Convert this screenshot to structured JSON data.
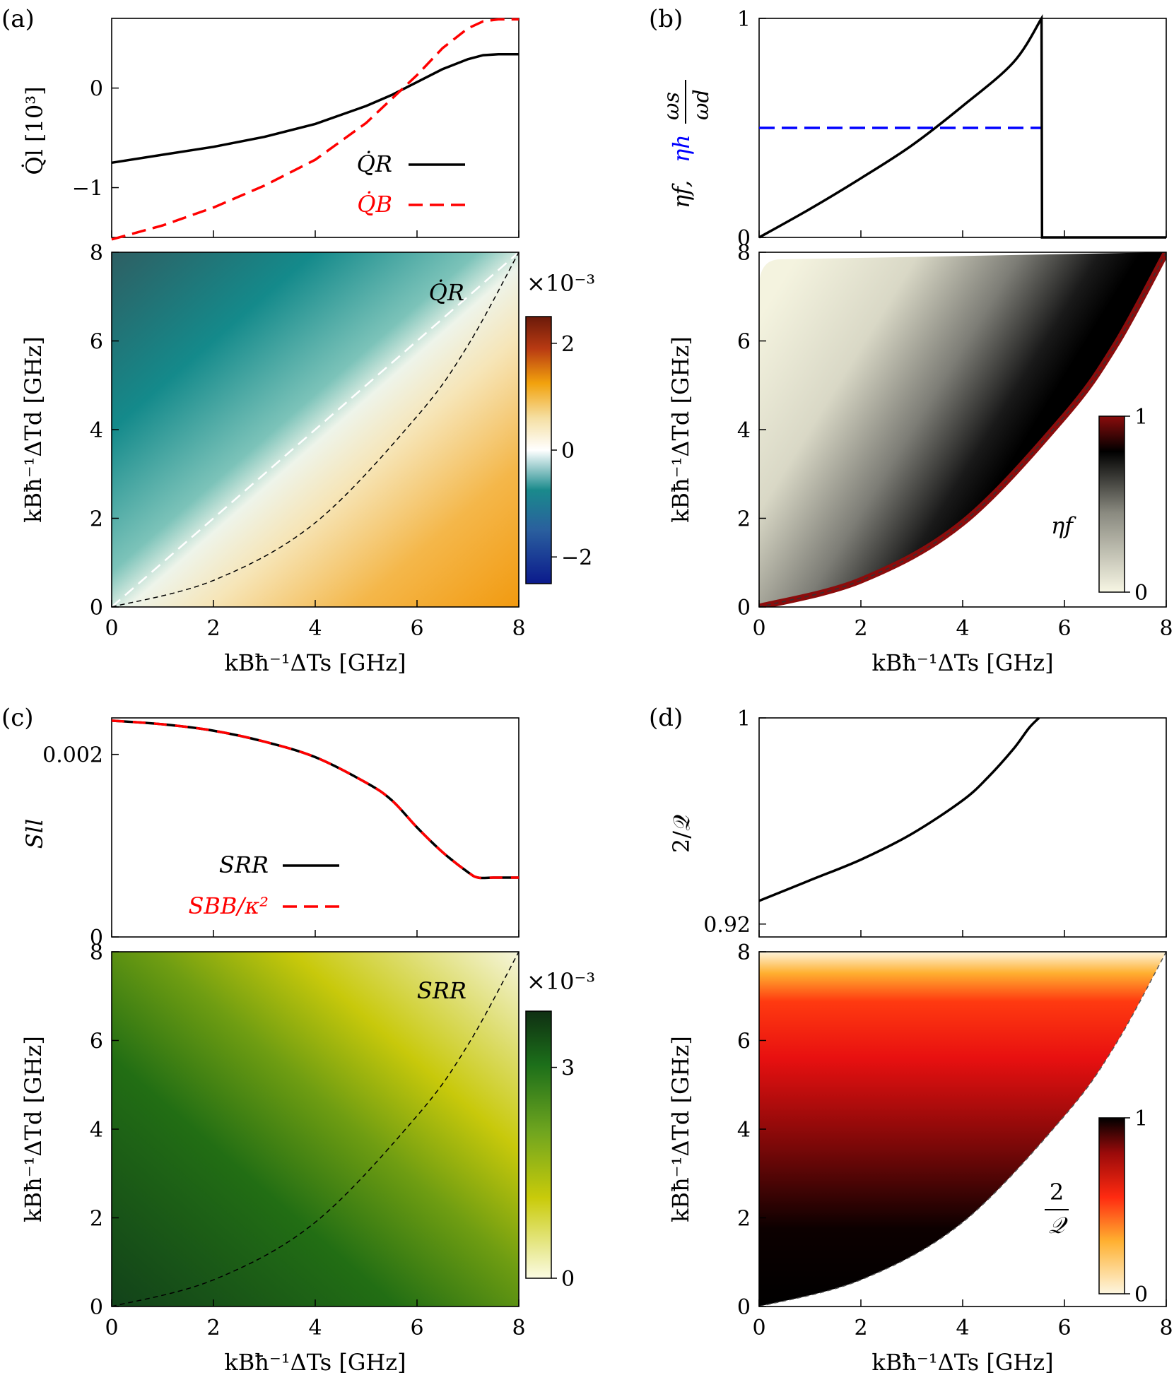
{
  "figure": {
    "panel_labels": [
      "(a)",
      "(b)",
      "(c)",
      "(d)"
    ],
    "xlabel": "kBħ⁻¹ΔTs [GHz]",
    "ylabel": "kBħ⁻¹ΔTd [GHz]"
  },
  "chart_data": [
    {
      "panel": "(a) top",
      "type": "line",
      "ylabel": "Q̇l [10³]",
      "xlim": [
        0,
        8
      ],
      "ylim": [
        -1.5,
        0.7
      ],
      "yticks": [
        -1,
        0
      ],
      "ytick_labels": [
        "−1",
        "0"
      ],
      "legend_position": "center-right",
      "x": [
        0,
        1,
        2,
        3,
        4,
        5,
        5.5,
        6,
        6.5,
        7,
        7.3,
        7.6,
        8
      ],
      "series": [
        {
          "name": "Q̇R",
          "color": "#000000",
          "style": "solid",
          "values": [
            -0.75,
            -0.67,
            -0.59,
            -0.49,
            -0.36,
            -0.18,
            -0.07,
            0.06,
            0.19,
            0.29,
            0.33,
            0.34,
            0.34
          ]
        },
        {
          "name": "Q̇B",
          "color": "#ff0000",
          "style": "dashed",
          "values": [
            -1.52,
            -1.38,
            -1.2,
            -0.98,
            -0.72,
            -0.35,
            -0.11,
            0.13,
            0.4,
            0.6,
            0.67,
            0.69,
            0.69
          ]
        }
      ]
    },
    {
      "panel": "(a) bottom",
      "type": "heatmap",
      "annotation": "Q̇R",
      "xlim": [
        0,
        8
      ],
      "ylim": [
        0,
        8
      ],
      "xticks": [
        0,
        2,
        4,
        6,
        8
      ],
      "yticks": [
        0,
        2,
        4,
        6,
        8
      ],
      "colorbar": {
        "range": [
          -2.5,
          2.5
        ],
        "ticks": [
          -2,
          0,
          2
        ],
        "tick_labels": [
          "−2",
          "0",
          "2"
        ],
        "exponent": "×10⁻³",
        "colors": [
          "#0b1a8c",
          "#2a66a8",
          "#1a8a8c",
          "#ffffff",
          "#f5dfa3",
          "#f2a20d",
          "#b83a12",
          "#6b1a0a"
        ]
      },
      "zero_contour": [
        [
          0,
          0
        ],
        [
          8,
          8
        ]
      ],
      "dashed_boundary": [
        [
          0,
          0
        ],
        [
          2,
          0.6
        ],
        [
          4,
          1.9
        ],
        [
          6,
          4.3
        ],
        [
          7,
          5.9
        ],
        [
          8,
          8
        ]
      ]
    },
    {
      "panel": "(b) top",
      "type": "line",
      "ylabel": "ηf, ηh, ωs/ωd",
      "xlim": [
        0,
        8
      ],
      "ylim": [
        0,
        1
      ],
      "yticks": [
        0,
        1
      ],
      "ytick_labels": [
        "0",
        "1"
      ],
      "x": [
        0,
        1,
        2,
        3,
        4,
        5,
        5.55,
        5.56,
        8
      ],
      "series": [
        {
          "name": "ηf",
          "color": "#000000",
          "style": "solid",
          "values": [
            0,
            0.13,
            0.27,
            0.42,
            0.6,
            0.8,
            1.0,
            0,
            0
          ]
        },
        {
          "name": "ηh",
          "color": "#0000ff",
          "style": "dashed",
          "values": [
            0.5,
            0.5,
            0.5,
            0.5,
            0.5,
            0.5,
            0.5,
            null,
            null
          ]
        }
      ]
    },
    {
      "panel": "(b) bottom",
      "type": "heatmap",
      "xlim": [
        0,
        8
      ],
      "ylim": [
        0,
        8
      ],
      "xticks": [
        0,
        2,
        4,
        6,
        8
      ],
      "yticks": [
        0,
        2,
        4,
        6,
        8
      ],
      "colorbar": {
        "label": "ηf",
        "range": [
          0,
          1
        ],
        "ticks": [
          0,
          1
        ],
        "tick_labels": [
          "0",
          "1"
        ],
        "colors": [
          "#f7f6e4",
          "#8a8a80",
          "#000000",
          "#8b0c0c"
        ]
      },
      "boundary": [
        [
          0,
          0
        ],
        [
          2,
          0.6
        ],
        [
          4,
          1.9
        ],
        [
          6,
          4.3
        ],
        [
          7,
          5.9
        ],
        [
          8,
          8
        ]
      ]
    },
    {
      "panel": "(c) top",
      "type": "line",
      "ylabel": "Sll",
      "xlim": [
        0,
        8
      ],
      "ylim": [
        0,
        0.0024
      ],
      "yticks": [
        0,
        0.002
      ],
      "ytick_labels": [
        "0",
        "0.002"
      ],
      "legend_position": "lower-left",
      "x": [
        0,
        1,
        2,
        3,
        4,
        5,
        5.5,
        6,
        6.5,
        7,
        7.2,
        7.5,
        8
      ],
      "series": [
        {
          "name": "SRR",
          "color": "#000000",
          "style": "solid",
          "values": [
            0.00237,
            0.00233,
            0.00226,
            0.00214,
            0.00197,
            0.00169,
            0.0015,
            0.0012,
            0.00093,
            0.00071,
            0.00065,
            0.00065,
            0.00065
          ]
        },
        {
          "name": "SBB/κ²",
          "color": "#ff0000",
          "style": "dashed",
          "values": [
            0.00237,
            0.00233,
            0.00226,
            0.00214,
            0.00197,
            0.00169,
            0.0015,
            0.0012,
            0.00093,
            0.00071,
            0.00065,
            0.00065,
            0.00065
          ]
        }
      ]
    },
    {
      "panel": "(c) bottom",
      "type": "heatmap",
      "annotation": "SRR",
      "xlim": [
        0,
        8
      ],
      "ylim": [
        0,
        8
      ],
      "xticks": [
        0,
        2,
        4,
        6,
        8
      ],
      "yticks": [
        0,
        2,
        4,
        6,
        8
      ],
      "colorbar": {
        "range": [
          0,
          3.8
        ],
        "ticks": [
          0,
          3
        ],
        "tick_labels": [
          "0",
          "3"
        ],
        "exponent": "×10⁻³",
        "colors": [
          "#fbfbe3",
          "#c9cb0a",
          "#6fa51f",
          "#1c6f1a",
          "#0f2f12"
        ]
      },
      "dashed_boundary": [
        [
          0,
          0
        ],
        [
          2,
          0.6
        ],
        [
          4,
          1.9
        ],
        [
          6,
          4.3
        ],
        [
          7,
          5.9
        ],
        [
          8,
          8
        ]
      ]
    },
    {
      "panel": "(d) top",
      "type": "line",
      "ylabel": "2/𝒬",
      "xlim": [
        0,
        8
      ],
      "ylim": [
        0.915,
        1.0
      ],
      "yticks": [
        0.92,
        1
      ],
      "ytick_labels": [
        "0.92",
        "1"
      ],
      "x": [
        0,
        1,
        2,
        3,
        4,
        4.5,
        5,
        5.3,
        5.5,
        8
      ],
      "series": [
        {
          "name": "2/𝒬",
          "color": "#000000",
          "style": "solid",
          "values": [
            0.929,
            0.937,
            0.945,
            0.955,
            0.968,
            0.977,
            0.988,
            0.996,
            1.0,
            null
          ]
        }
      ]
    },
    {
      "panel": "(d) bottom",
      "type": "heatmap",
      "xlim": [
        0,
        8
      ],
      "ylim": [
        0,
        8
      ],
      "xticks": [
        0,
        2,
        4,
        6,
        8
      ],
      "yticks": [
        0,
        2,
        4,
        6,
        8
      ],
      "colorbar": {
        "label": "2/𝒬",
        "range": [
          0,
          1
        ],
        "ticks": [
          0,
          1
        ],
        "tick_labels": [
          "0",
          "1"
        ],
        "colors": [
          "#fdf6e0",
          "#ffb030",
          "#ff2a10",
          "#9a0a0a",
          "#000000"
        ]
      },
      "boundary": [
        [
          0,
          0
        ],
        [
          2,
          0.6
        ],
        [
          4,
          1.9
        ],
        [
          6,
          4.3
        ],
        [
          7,
          5.9
        ],
        [
          8,
          8
        ]
      ]
    }
  ]
}
